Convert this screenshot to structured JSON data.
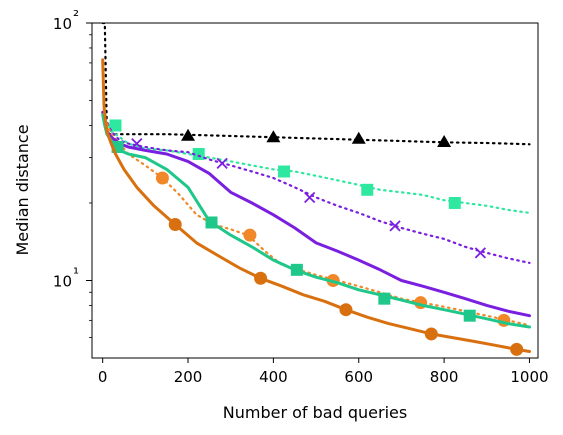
{
  "chart_data": {
    "type": "line",
    "xlabel": "Number of bad queries",
    "ylabel": "Median distance",
    "xlim": [
      -25,
      1020
    ],
    "ylim": [
      5,
      100
    ],
    "y_scale": "log",
    "grid": false,
    "x_ticks": [
      0,
      200,
      400,
      600,
      800,
      1000
    ],
    "x_tick_labels": [
      "0",
      "200",
      "400",
      "600",
      "800",
      "1000"
    ],
    "y_ticks": [
      10,
      100
    ],
    "y_tick_labels": [
      "10¹",
      "10²"
    ],
    "series": [
      {
        "color": "#000000",
        "dash": "dotted",
        "marker": "triangle",
        "x": [
          0,
          5,
          10,
          15,
          20,
          25,
          40,
          60,
          100,
          150,
          200,
          250,
          300,
          350,
          400,
          450,
          500,
          550,
          600,
          650,
          700,
          750,
          800,
          850,
          900,
          950,
          1000
        ],
        "y": [
          100,
          100,
          38,
          37,
          37,
          37,
          37,
          37,
          37,
          37,
          36.8,
          36.6,
          36.4,
          36.2,
          36,
          35.8,
          35.6,
          35.4,
          35.2,
          35,
          34.8,
          34.6,
          34.4,
          34.3,
          34.2,
          34.0,
          33.8
        ],
        "markers_x": [
          200,
          400,
          600,
          800
        ],
        "markers_y": [
          36.5,
          36,
          35.5,
          34.5
        ]
      },
      {
        "color": "#2ee8a0",
        "dash": "dotted",
        "marker": "square",
        "x": [
          0,
          20,
          40,
          60,
          100,
          150,
          200,
          250,
          300,
          350,
          400,
          450,
          500,
          550,
          600,
          650,
          700,
          750,
          800,
          850,
          900,
          950,
          1000
        ],
        "y": [
          44,
          38,
          36,
          34,
          32.5,
          32,
          31,
          30,
          29,
          28,
          27,
          26.5,
          25.5,
          24.5,
          23.5,
          22.5,
          22,
          21.5,
          20.5,
          20,
          19.5,
          18.8,
          18.3
        ],
        "markers_x": [
          30,
          225,
          425,
          620,
          825
        ],
        "markers_y": [
          40,
          31,
          26.5,
          22.5,
          20
        ]
      },
      {
        "color": "#7a1fe0",
        "dash": "dotted",
        "marker": "x",
        "x": [
          0,
          20,
          40,
          60,
          100,
          150,
          200,
          250,
          300,
          350,
          400,
          450,
          500,
          550,
          600,
          650,
          700,
          750,
          800,
          850,
          900,
          950,
          1000
        ],
        "y": [
          45,
          38,
          35,
          34,
          33,
          32,
          31.5,
          29.5,
          28,
          26.5,
          25,
          23,
          21,
          19.5,
          18.3,
          17,
          16,
          15.2,
          14.5,
          13.5,
          12.8,
          12.2,
          11.7
        ],
        "markers_x": [
          80,
          280,
          485,
          685,
          885
        ],
        "markers_y": [
          34,
          28.5,
          21,
          16.3,
          12.8
        ]
      },
      {
        "color": "#f0882a",
        "dash": "dotted",
        "marker": "circle",
        "x": [
          0,
          20,
          40,
          60,
          100,
          140,
          180,
          220,
          260,
          300,
          340,
          380,
          420,
          460,
          500,
          550,
          600,
          650,
          700,
          750,
          800,
          850,
          900,
          950,
          1000
        ],
        "y": [
          45,
          37,
          34,
          31,
          28,
          25,
          21.5,
          18,
          16.5,
          15.8,
          15,
          13,
          11.5,
          11,
          10.5,
          10,
          9.5,
          9,
          8.5,
          8.2,
          7.9,
          7.6,
          7.3,
          7.0,
          6.7
        ],
        "markers_x": [
          140,
          345,
          540,
          745,
          940
        ],
        "markers_y": [
          25,
          15,
          10,
          8.2,
          7
        ]
      },
      {
        "color": "#7a1fe0",
        "dash": "solid",
        "marker": "none",
        "x": [
          0,
          5,
          10,
          20,
          40,
          60,
          100,
          150,
          200,
          250,
          300,
          350,
          400,
          450,
          500,
          550,
          600,
          650,
          700,
          750,
          800,
          850,
          900,
          950,
          1000
        ],
        "y": [
          45,
          42,
          38,
          36,
          34,
          33,
          32,
          31,
          29,
          26,
          22,
          20,
          18,
          16,
          14,
          13,
          12,
          11,
          10,
          9.5,
          9,
          8.5,
          8,
          7.6,
          7.3
        ],
        "markers_x": [],
        "markers_y": []
      },
      {
        "color": "#20c78a",
        "dash": "solid",
        "marker": "square",
        "x": [
          0,
          5,
          10,
          20,
          30,
          40,
          60,
          100,
          150,
          200,
          250,
          300,
          350,
          400,
          450,
          500,
          550,
          600,
          650,
          700,
          750,
          800,
          850,
          900,
          950,
          1000
        ],
        "y": [
          44,
          40,
          37,
          35,
          33,
          32,
          31,
          30,
          27,
          23,
          17,
          15,
          13.5,
          12,
          11,
          10.3,
          9.8,
          9.2,
          8.8,
          8.4,
          8,
          7.7,
          7.4,
          7.1,
          6.8,
          6.6
        ],
        "markers_x": [
          35,
          255,
          455,
          660,
          860
        ],
        "markers_y": [
          33,
          16.8,
          11,
          8.5,
          7.3
        ]
      },
      {
        "color": "#d9700f",
        "dash": "solid",
        "marker": "circle",
        "x": [
          0,
          3,
          6,
          10,
          20,
          30,
          50,
          80,
          120,
          170,
          220,
          270,
          320,
          370,
          420,
          470,
          520,
          570,
          620,
          670,
          720,
          770,
          820,
          870,
          920,
          970,
          1000
        ],
        "y": [
          72,
          48,
          42,
          38,
          34,
          31,
          27,
          23,
          19.5,
          16.5,
          14,
          12.5,
          11.2,
          10.2,
          9.5,
          8.8,
          8.3,
          7.7,
          7.2,
          6.8,
          6.5,
          6.2,
          6.0,
          5.8,
          5.6,
          5.4,
          5.3
        ],
        "markers_x": [
          170,
          370,
          570,
          770,
          970
        ],
        "markers_y": [
          16.5,
          10.2,
          7.7,
          6.2,
          5.4
        ]
      }
    ]
  }
}
